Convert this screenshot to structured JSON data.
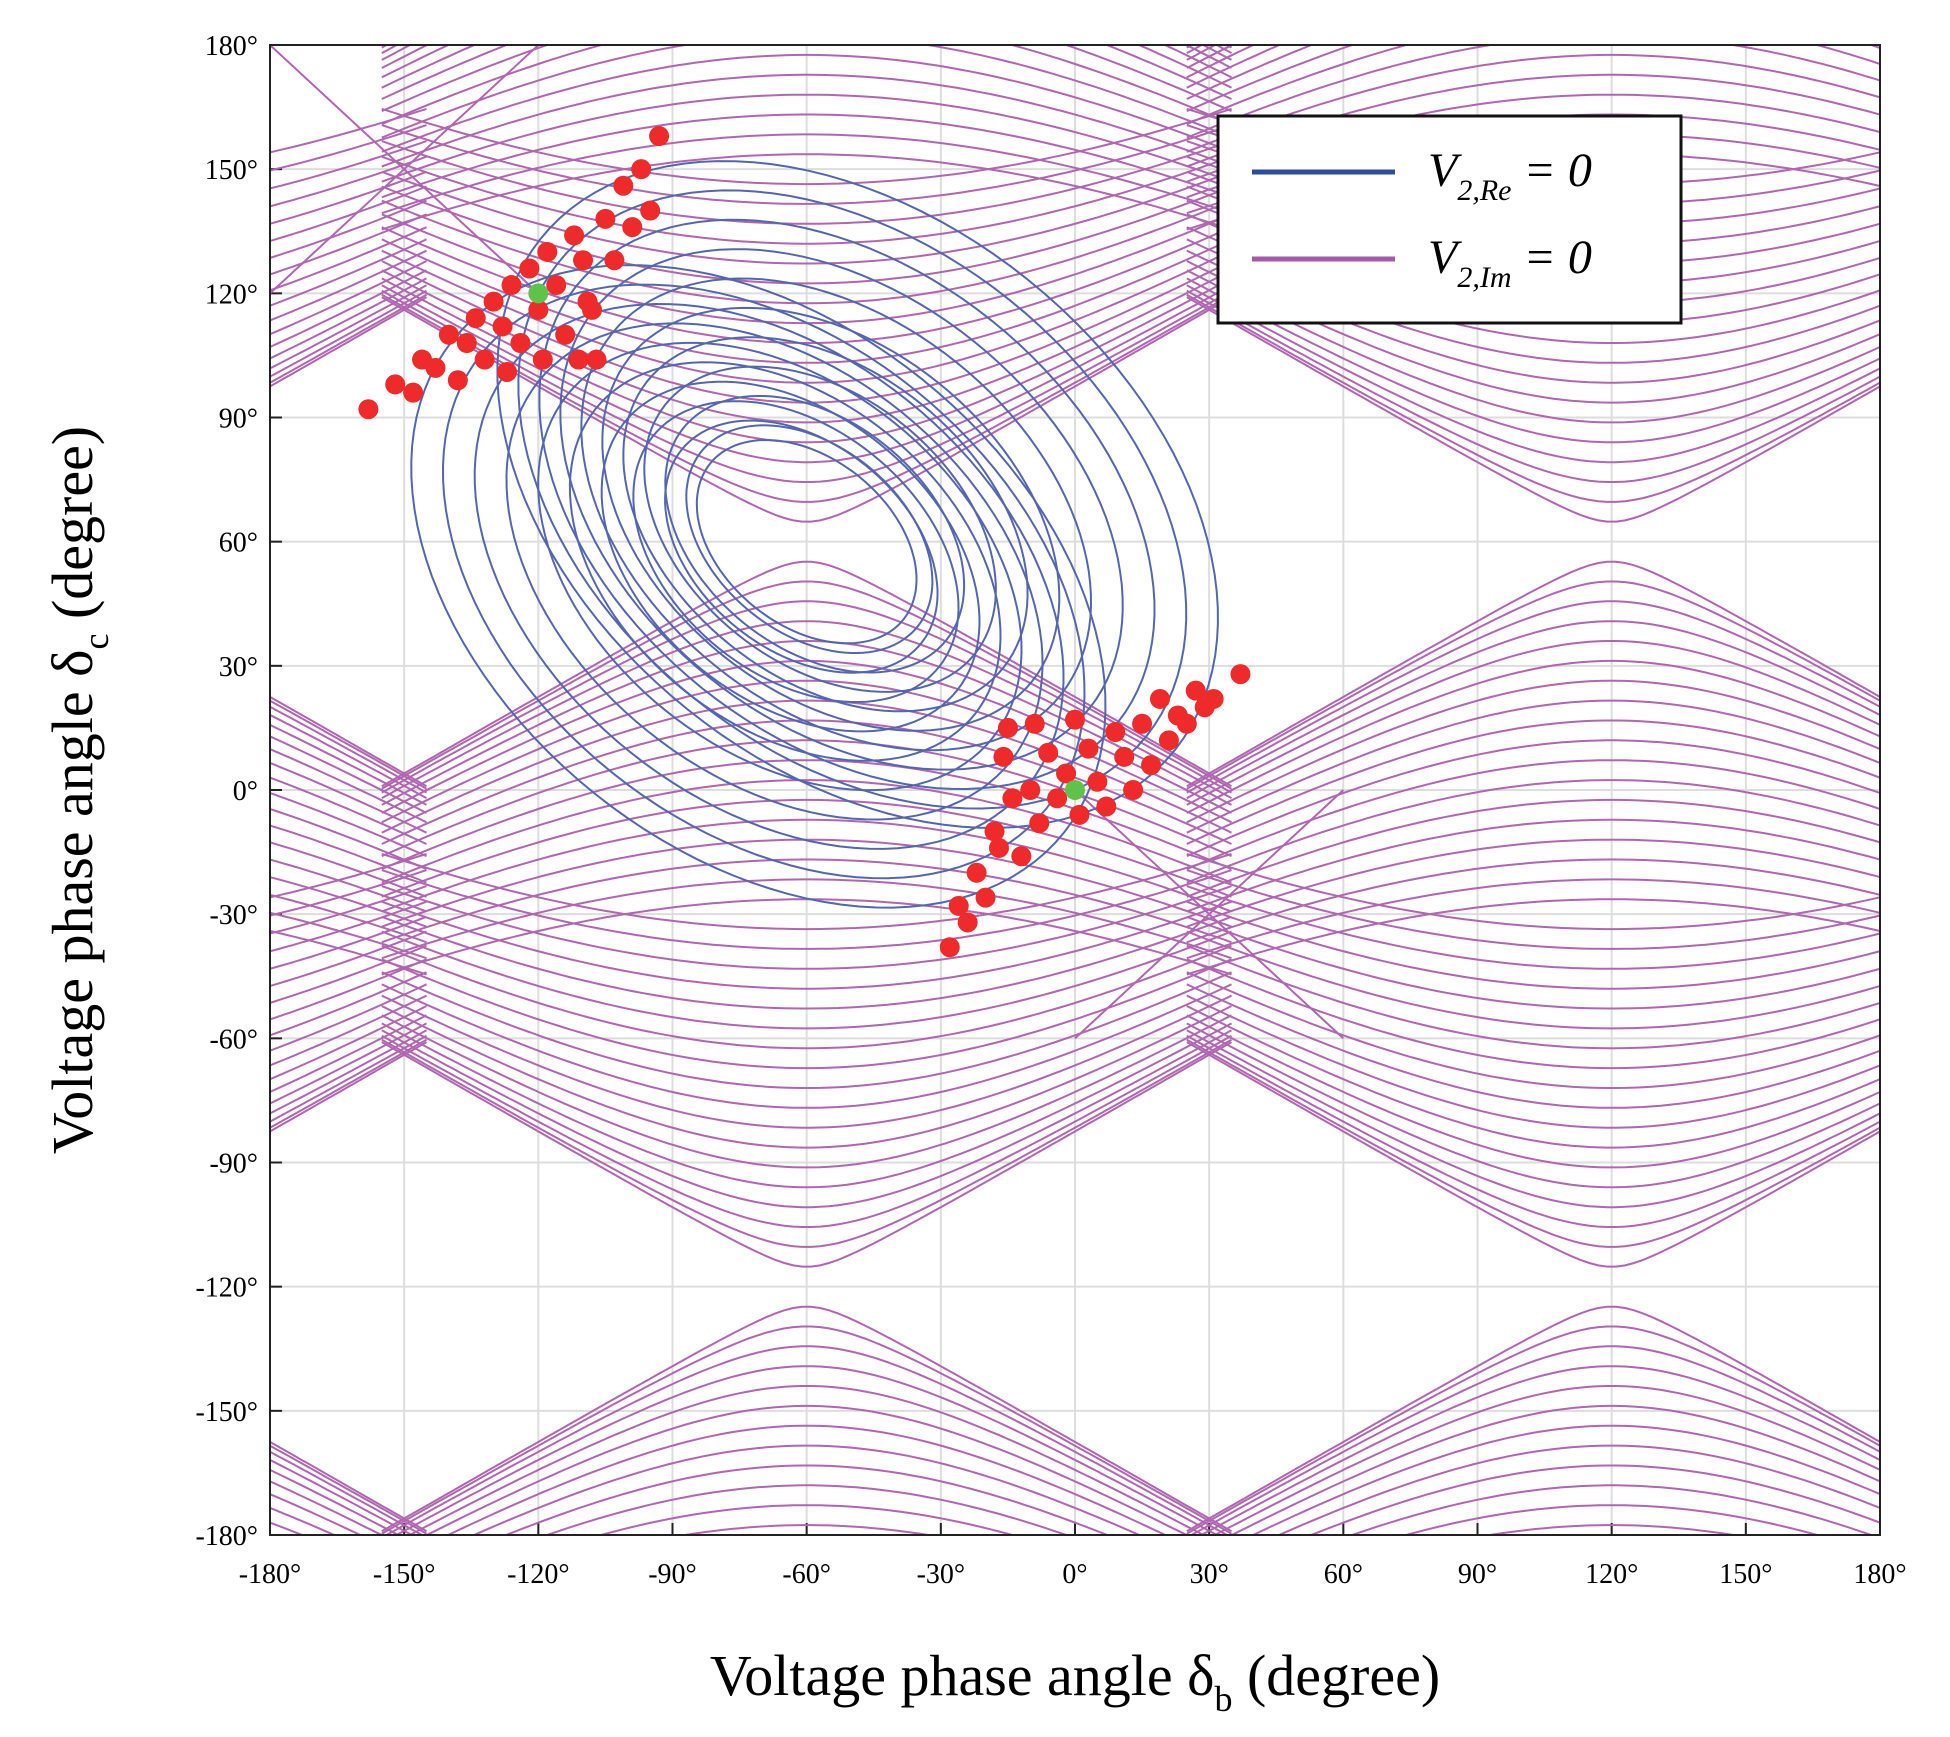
{
  "chart_data": {
    "type": "line",
    "title": "",
    "xlabel": {
      "main": "Voltage phase angle δ",
      "sub": "b",
      "suffix": " (degree)"
    },
    "ylabel": {
      "main": "Voltage phase angle δ",
      "sub": "c",
      "suffix": " (degree)"
    },
    "xlim": [
      -180,
      180
    ],
    "ylim": [
      -180,
      180
    ],
    "grid": true,
    "xticks": [
      -180,
      -150,
      -120,
      -90,
      -60,
      -30,
      0,
      30,
      60,
      90,
      120,
      150,
      180
    ],
    "yticks": [
      -180,
      -150,
      -120,
      -90,
      -60,
      -30,
      0,
      30,
      60,
      90,
      120,
      150,
      180
    ],
    "xtick_labels": [
      "-180°",
      "-150°",
      "-120°",
      "-90°",
      "-60°",
      "-30°",
      "0°",
      "30°",
      "60°",
      "90°",
      "120°",
      "150°",
      "180°"
    ],
    "ytick_labels": [
      "-180°",
      "-150°",
      "-120°",
      "-90°",
      "-60°",
      "-30°",
      "0°",
      "30°",
      "60°",
      "90°",
      "120°",
      "150°",
      "180°"
    ],
    "legend": {
      "placement": "top-right",
      "entries": [
        {
          "name": "V",
          "sub": "2,Re",
          "tail": " = 0",
          "color": "#5566b0"
        },
        {
          "name": "V",
          "sub": "2,Im",
          "tail": " = 0",
          "color": "#b066b0"
        }
      ]
    },
    "colors": {
      "re": "#5566b0",
      "im": "#b066b0",
      "points": "#ee2a2a",
      "nominal": "#5fc24a",
      "grid": "#dddddd"
    },
    "series": [
      {
        "name": "V2,Re = 0",
        "kind": "closed loops around (-60°, 60°)",
        "radii": [
          25,
          28,
          31,
          34,
          37,
          40,
          43,
          46,
          49,
          52,
          55,
          58,
          61,
          64,
          67,
          70,
          73,
          76,
          79,
          82
        ]
      },
      {
        "name": "V2,Im = 0",
        "kind": "hyperbola families crossing at (-60°, 60°), (120°, 60°), (-60°, -120°), (120°, -120°)",
        "saddle_points": [
          [
            -150,
            150
          ],
          [
            30,
            -30
          ]
        ]
      }
    ],
    "solution_points": [
      [
        -158,
        92
      ],
      [
        -152,
        98
      ],
      [
        -148,
        96
      ],
      [
        -146,
        104
      ],
      [
        -143,
        102
      ],
      [
        -140,
        110
      ],
      [
        -138,
        99
      ],
      [
        -136,
        108
      ],
      [
        -134,
        114
      ],
      [
        -132,
        104
      ],
      [
        -130,
        118
      ],
      [
        -128,
        112
      ],
      [
        -127,
        101
      ],
      [
        -126,
        122
      ],
      [
        -124,
        108
      ],
      [
        -122,
        126
      ],
      [
        -120,
        116
      ],
      [
        -119,
        104
      ],
      [
        -118,
        130
      ],
      [
        -116,
        122
      ],
      [
        -114,
        110
      ],
      [
        -112,
        134
      ],
      [
        -110,
        128
      ],
      [
        -108,
        116
      ],
      [
        -107,
        104
      ],
      [
        -105,
        138
      ],
      [
        -103,
        128
      ],
      [
        -101,
        146
      ],
      [
        -99,
        136
      ],
      [
        -97,
        150
      ],
      [
        -95,
        140
      ],
      [
        -93,
        158
      ],
      [
        -111,
        104
      ],
      [
        -109,
        118
      ],
      [
        -28,
        -38
      ],
      [
        -26,
        -28
      ],
      [
        -24,
        -32
      ],
      [
        -22,
        -20
      ],
      [
        -20,
        -26
      ],
      [
        -18,
        -10
      ],
      [
        -17,
        -14
      ],
      [
        -16,
        8
      ],
      [
        -15,
        15
      ],
      [
        -14,
        -2
      ],
      [
        -12,
        -16
      ],
      [
        -10,
        0
      ],
      [
        -9,
        16
      ],
      [
        -8,
        -8
      ],
      [
        -6,
        9
      ],
      [
        -4,
        -2
      ],
      [
        -2,
        4
      ],
      [
        0,
        17
      ],
      [
        1,
        -6
      ],
      [
        3,
        10
      ],
      [
        5,
        2
      ],
      [
        7,
        -4
      ],
      [
        9,
        14
      ],
      [
        11,
        8
      ],
      [
        13,
        0
      ],
      [
        15,
        16
      ],
      [
        17,
        6
      ],
      [
        19,
        22
      ],
      [
        21,
        12
      ],
      [
        23,
        18
      ],
      [
        25,
        16
      ],
      [
        27,
        24
      ],
      [
        29,
        20
      ],
      [
        31,
        22
      ],
      [
        37,
        28
      ]
    ],
    "nominal_points": [
      [
        -120,
        120
      ],
      [
        0,
        0
      ]
    ]
  }
}
